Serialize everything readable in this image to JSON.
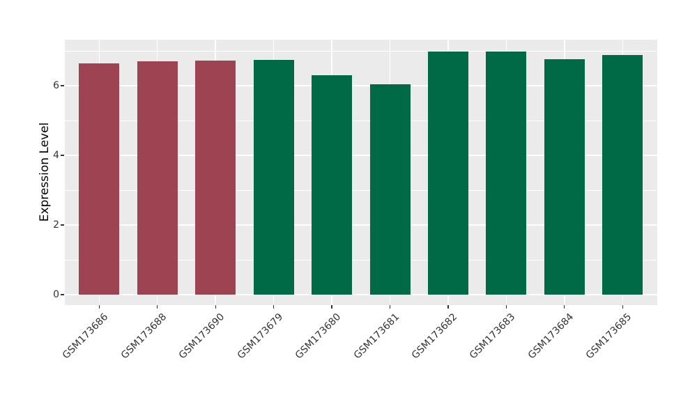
{
  "chart_data": {
    "type": "bar",
    "title": "",
    "ylabel": "Expression Level",
    "xlabel": "",
    "categories": [
      "GSM173686",
      "GSM173688",
      "GSM173690",
      "GSM173679",
      "GSM173680",
      "GSM173681",
      "GSM173682",
      "GSM173683",
      "GSM173684",
      "GSM173685"
    ],
    "values": [
      6.64,
      6.7,
      6.73,
      6.75,
      6.31,
      6.04,
      6.98,
      6.98,
      6.76,
      6.89
    ],
    "bar_colors": [
      "#9E4352",
      "#9E4352",
      "#9E4352",
      "#006946",
      "#006946",
      "#006946",
      "#006946",
      "#006946",
      "#006946",
      "#006946"
    ],
    "yticks": [
      0,
      2,
      4,
      6
    ],
    "minor_gridlines": [
      1,
      3,
      5,
      7
    ],
    "ylim": [
      -0.3,
      7.32
    ],
    "grid": "on",
    "legend": "none",
    "colors": {
      "maroon_group": "#9E4352",
      "green_group": "#006946",
      "panel_background": "#EBEBEB",
      "gridline": "#FFFFFF",
      "tick_text": "#333333",
      "axis_title": "#000000"
    }
  }
}
